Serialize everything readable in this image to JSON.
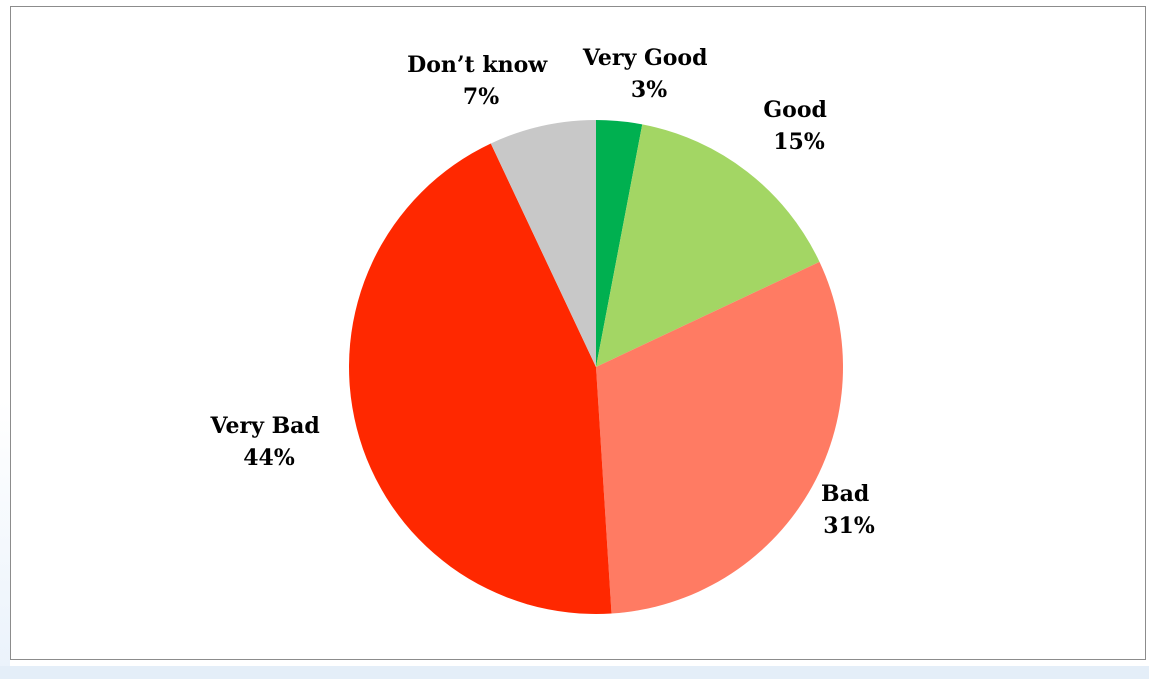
{
  "chart_data": {
    "type": "pie",
    "title": "",
    "categories": [
      "Very Good",
      "Good",
      "Bad",
      "Very Bad",
      "Don’t know"
    ],
    "values": [
      3,
      15,
      31,
      44,
      7
    ],
    "value_labels": [
      "3%",
      "15%",
      "31%",
      "44%",
      "7%"
    ],
    "colors": [
      "#00b050",
      "#a3d664",
      "#ff7b63",
      "#ff2800",
      "#c8c8c8"
    ],
    "start_angle_deg": 0,
    "direction": "clockwise",
    "legend": "none",
    "data_labels": "outside"
  }
}
